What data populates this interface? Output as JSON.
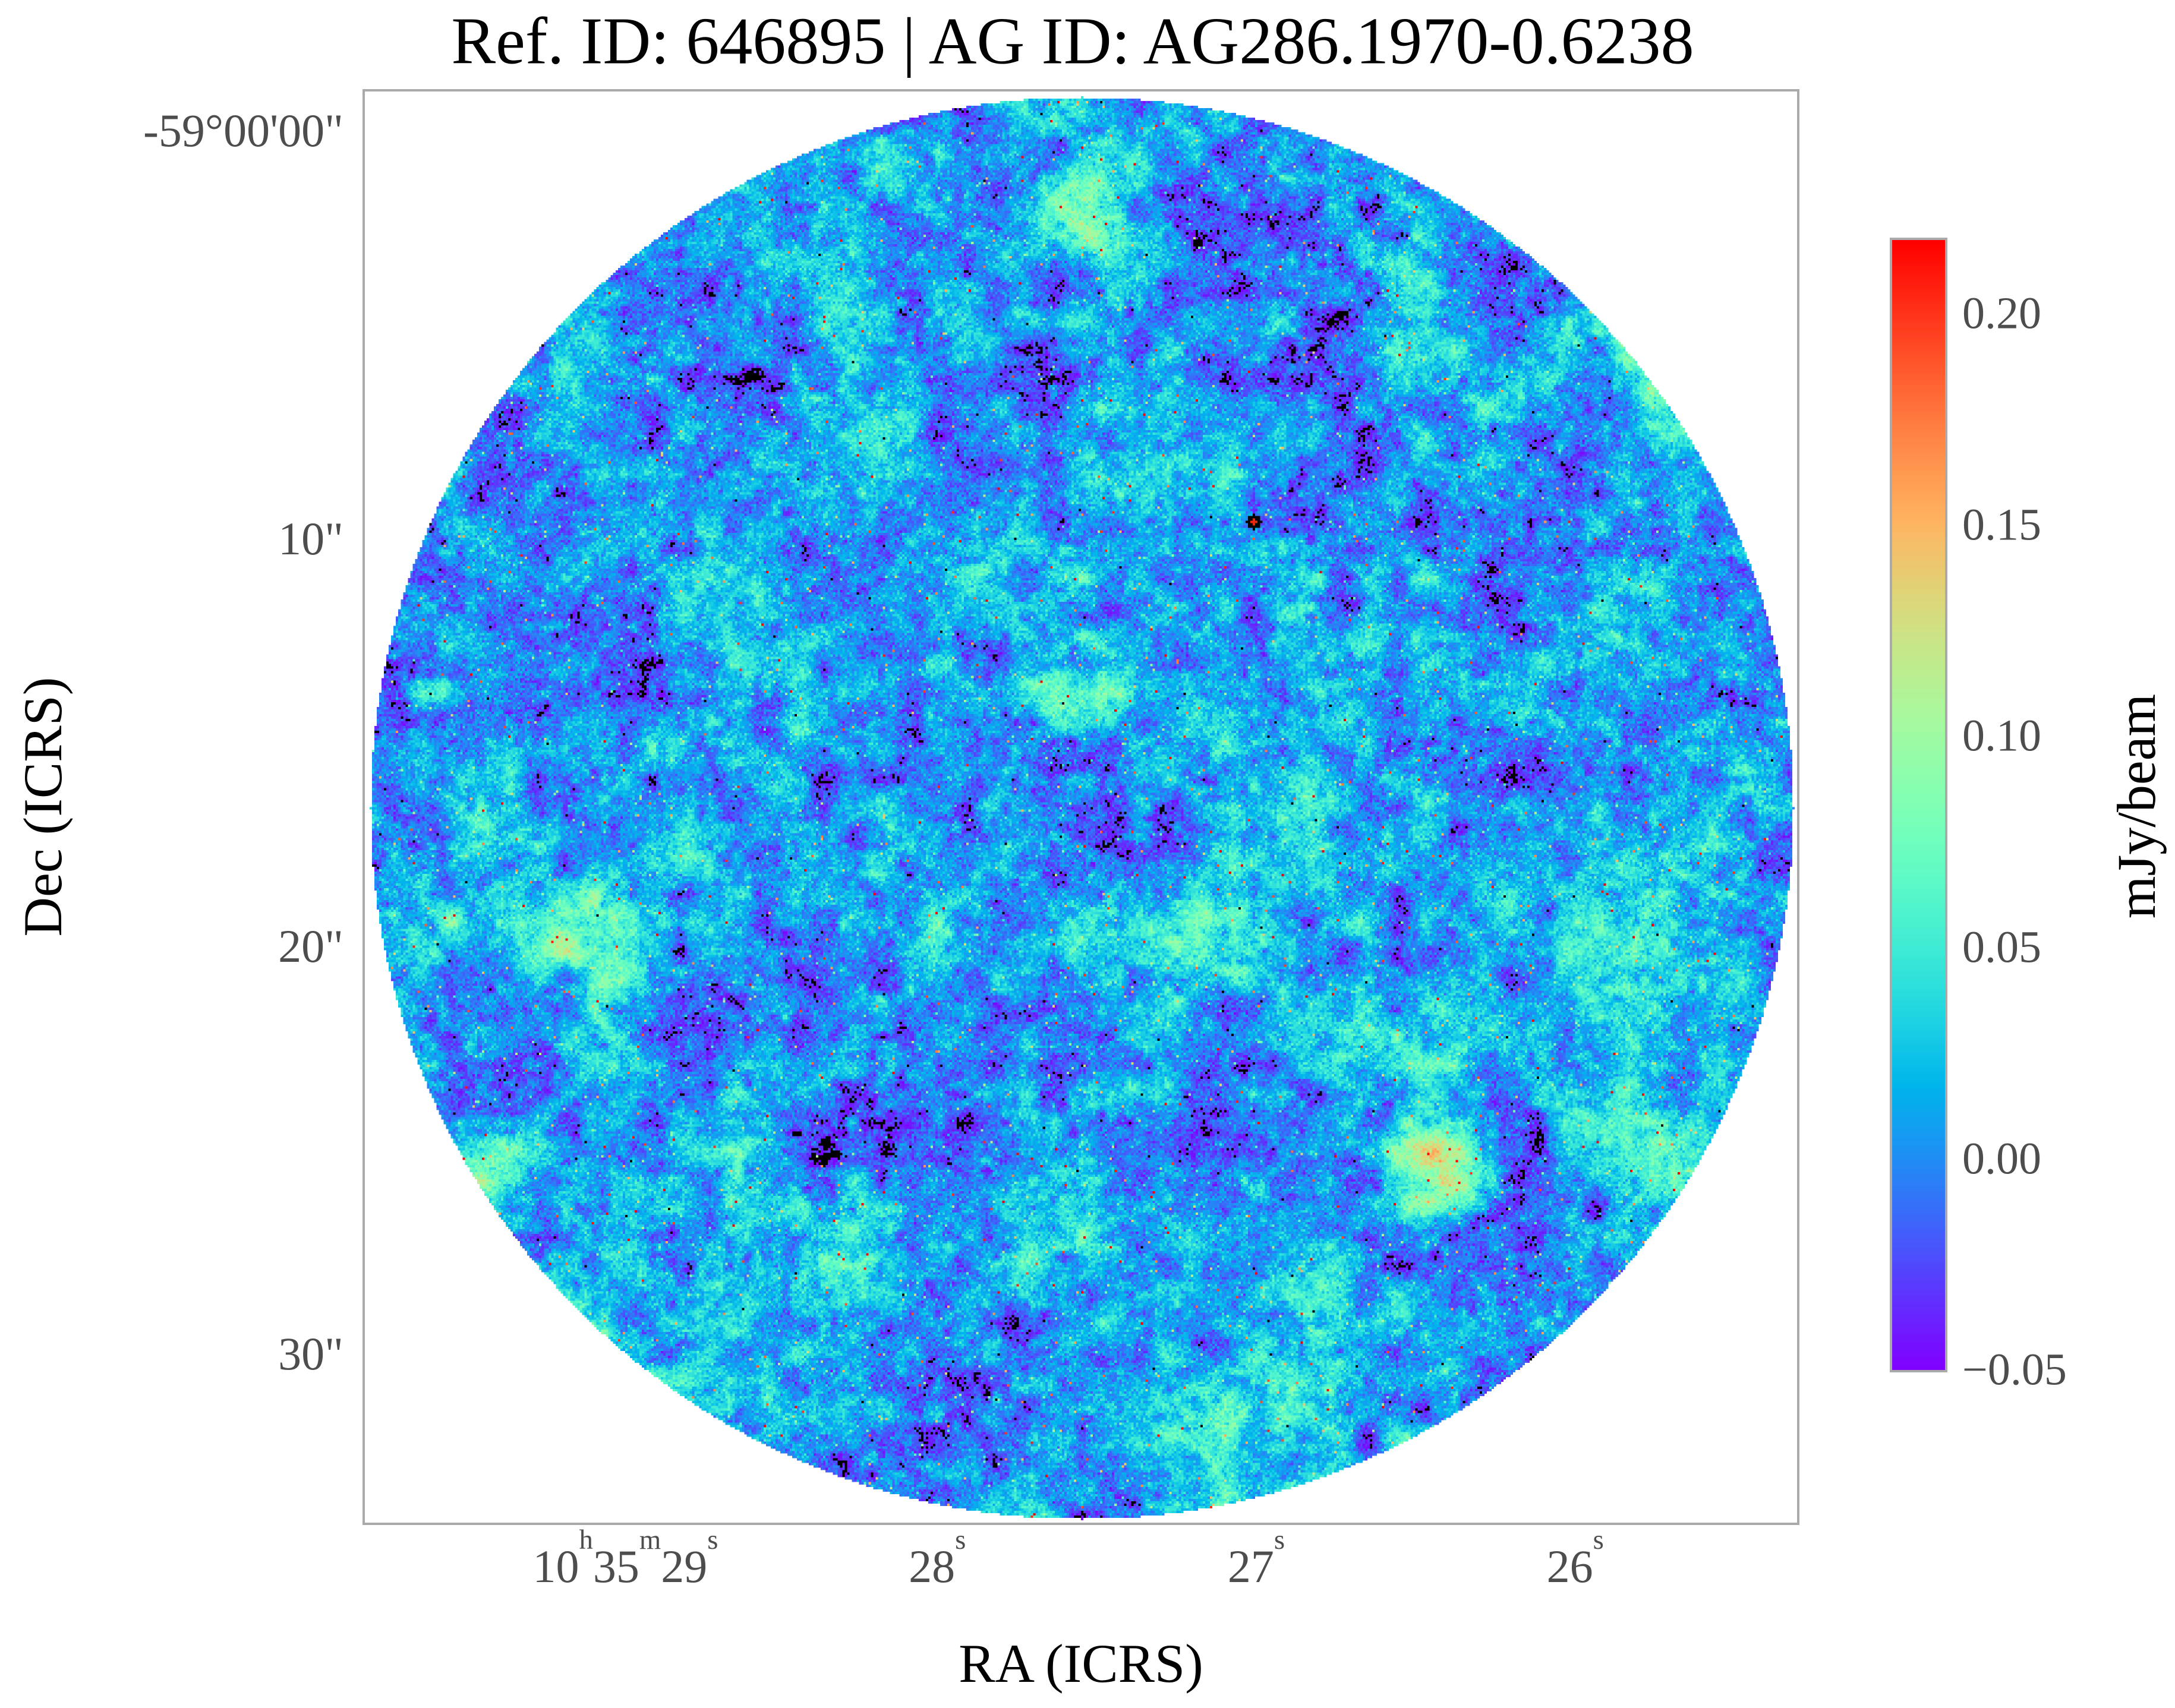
{
  "title": "Ref. ID: 646895 | AG ID: AG286.1970-0.6238",
  "axes": {
    "x_label": "RA (ICRS)",
    "y_label": "Dec (ICRS)",
    "x_ticks": [
      {
        "pos": 0.183,
        "segments": [
          {
            "t": "10",
            "s": "h"
          },
          {
            "t": "35",
            "s": "m"
          },
          {
            "t": "29",
            "s": "s"
          }
        ]
      },
      {
        "pos": 0.4,
        "segments": [
          {
            "t": "28",
            "s": "s"
          }
        ]
      },
      {
        "pos": 0.622,
        "segments": [
          {
            "t": "27",
            "s": "s"
          }
        ]
      },
      {
        "pos": 0.844,
        "segments": [
          {
            "t": "26",
            "s": "s"
          }
        ]
      }
    ],
    "y_ticks": [
      {
        "pos": 0.029,
        "label": "-59°00'00\""
      },
      {
        "pos": 0.313,
        "label": "10\""
      },
      {
        "pos": 0.597,
        "label": "20\""
      },
      {
        "pos": 0.881,
        "label": "30\""
      }
    ],
    "tick_color": "#4d4d4d",
    "frame_color": "#aaaaaa"
  },
  "colorbar": {
    "label": "mJy/beam",
    "colormap": "rainbow",
    "vmin": -0.0505,
    "vmax": 0.218,
    "under_color": "#000000",
    "ticks": [
      {
        "value": 0.2,
        "label": "0.20"
      },
      {
        "value": 0.15,
        "label": "0.15"
      },
      {
        "value": 0.1,
        "label": "0.10"
      },
      {
        "value": 0.05,
        "label": "0.05"
      },
      {
        "value": 0.0,
        "label": "0.00"
      },
      {
        "value": -0.05,
        "label": "−0.05"
      }
    ]
  },
  "chart_data": {
    "type": "heatmap",
    "title": "Ref. ID: 646895 | AG ID: AG286.1970-0.6238",
    "xlabel": "RA (ICRS)",
    "ylabel": "Dec (ICRS)",
    "x_tick_labels": [
      "10h35m29s",
      "28s",
      "27s",
      "26s"
    ],
    "y_tick_labels": [
      "-59°00'00\"",
      "10\"",
      "20\"",
      "30\""
    ],
    "x_range_ra": [
      "10h35m29.8s",
      "10h35m25.3s"
    ],
    "y_range_dec": [
      "-58°59'59\"",
      "-59°00'34\""
    ],
    "value_unit": "mJy/beam",
    "value_range": [
      -0.0505,
      0.218
    ],
    "colorbar_ticks": [
      0.2,
      0.15,
      0.1,
      0.05,
      0.0,
      -0.05
    ],
    "colormap": "rainbow (violet → blue → cyan → green → khaki → orange → red)",
    "under_color": "black",
    "field": {
      "shape": "circular aperture (radio interferometer pointing, ~35 arcsec diameter) on white background",
      "content": "beam-correlated Gaussian noise map, no dominant source",
      "noise_mean_mJy": 0.006,
      "noise_sigma_mJy": 0.03,
      "texture": "patchy blue/violet background with cyan-green filaments, sparse orange/red hot pixels (~1%), rare black saturated/masked specks",
      "notable_feature": "small black ring with red core (bright compact source) at approx RA-fraction 0.62, Dec-fraction 0.30 of the field",
      "data_pixel_size_fraction": 0.00167
    }
  }
}
